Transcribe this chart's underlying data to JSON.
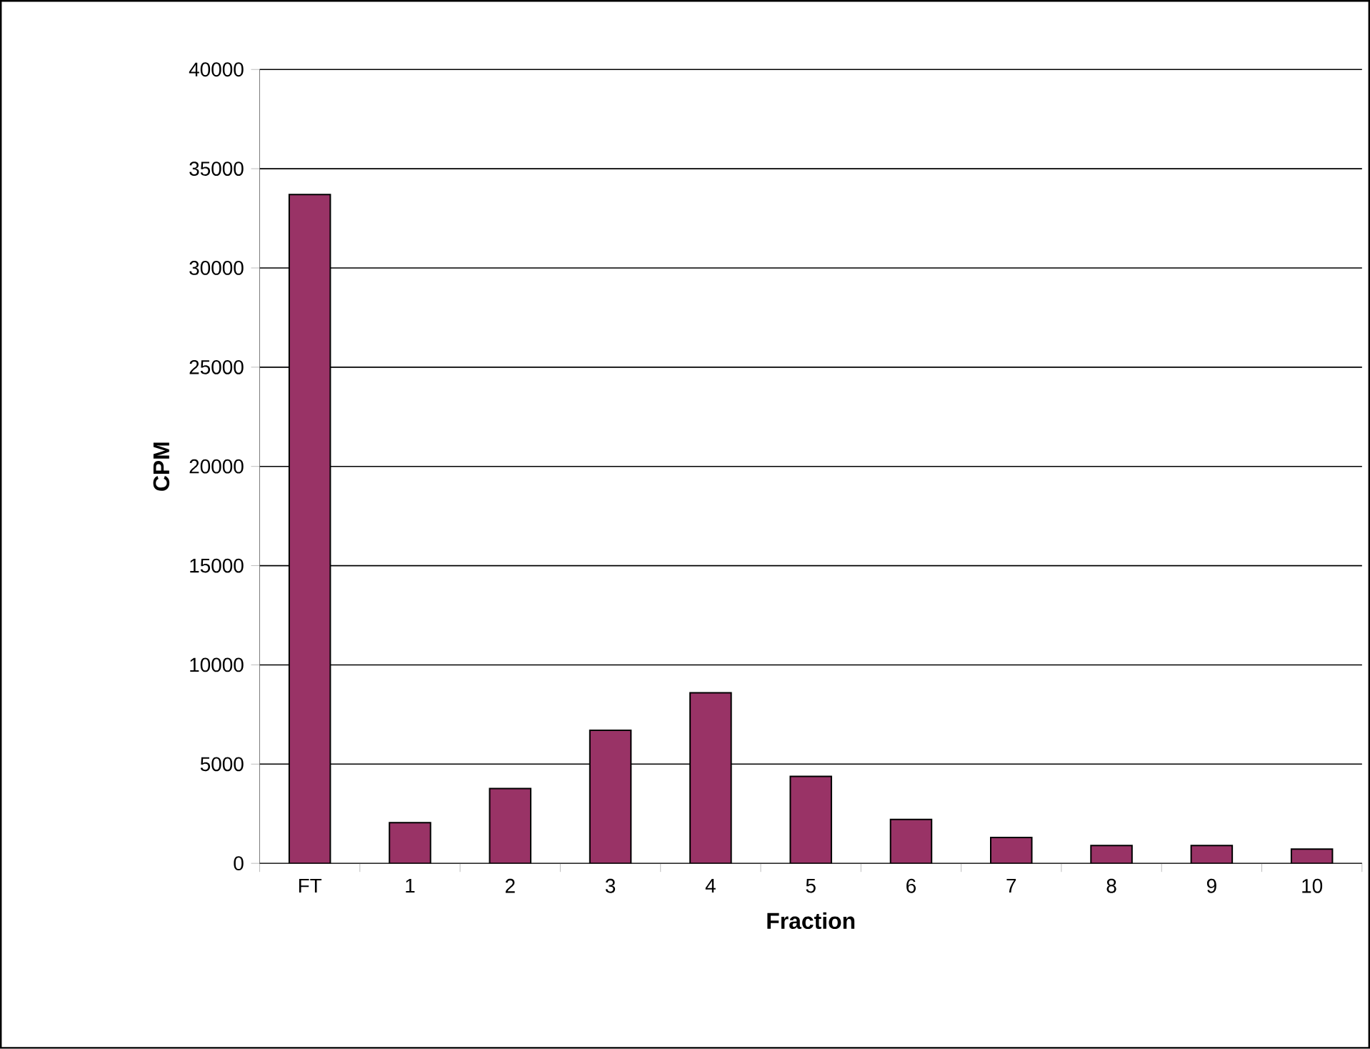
{
  "chart_data": {
    "type": "bar",
    "xlabel": "Fraction",
    "ylabel": "CPM",
    "categories": [
      "FT",
      "1",
      "2",
      "3",
      "4",
      "5",
      "6",
      "7",
      "8",
      "9",
      "10"
    ],
    "values": [
      33700,
      2050,
      3770,
      6700,
      8590,
      4380,
      2210,
      1300,
      900,
      900,
      720
    ],
    "color": "#993366",
    "ylim": [
      0,
      40000
    ],
    "yticks": [
      0,
      5000,
      10000,
      15000,
      20000,
      25000,
      30000,
      35000,
      40000
    ],
    "grid": "y"
  }
}
